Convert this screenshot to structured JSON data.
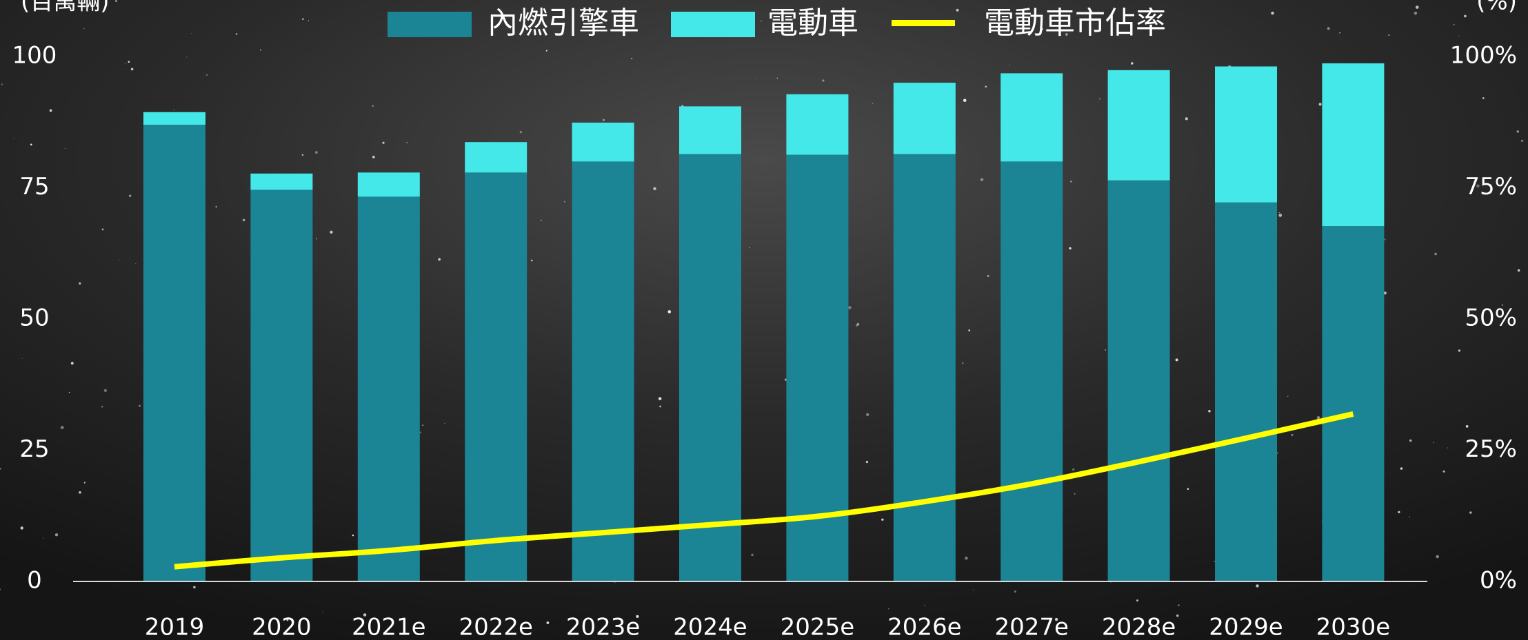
{
  "chart_data": {
    "type": "bar",
    "categories": [
      "2019",
      "2020",
      "2021e",
      "2022e",
      "2023e",
      "2024e",
      "2025e",
      "2026e",
      "2027e",
      "2028e",
      "2029e",
      "2030e"
    ],
    "y_label": "(百萬輛)",
    "y2_label": "(%)",
    "series": [
      {
        "name": "內燃引擎車",
        "type": "bar",
        "color": "#1b8596",
        "values": [
          87.0,
          74.6,
          73.3,
          77.9,
          80.0,
          81.4,
          81.3,
          81.4,
          80.0,
          76.4,
          72.2,
          67.7
        ]
      },
      {
        "name": "電動車",
        "type": "bar",
        "color": "#45e8e8",
        "values": [
          2.4,
          3.1,
          4.6,
          5.8,
          7.4,
          9.1,
          11.5,
          13.6,
          16.8,
          21.0,
          25.9,
          31.0
        ]
      },
      {
        "name": "電動車市佔率",
        "type": "line",
        "axis": "y2",
        "color": "#ffff00",
        "values": [
          2.8,
          4.5,
          5.9,
          7.8,
          9.3,
          10.8,
          12.4,
          15.2,
          18.6,
          22.8,
          27.3,
          31.9
        ]
      }
    ],
    "ylim": [
      0,
      100
    ],
    "yticks": [
      0,
      25,
      50,
      75,
      100
    ],
    "y2lim": [
      0,
      100
    ],
    "y2ticks": [
      {
        "value": 0,
        "label": "0%"
      },
      {
        "value": 25,
        "label": "25%"
      },
      {
        "value": 50,
        "label": "50%"
      },
      {
        "value": 75,
        "label": "75%"
      },
      {
        "value": 100,
        "label": "100%"
      }
    ],
    "stacked": true,
    "grid": false
  }
}
